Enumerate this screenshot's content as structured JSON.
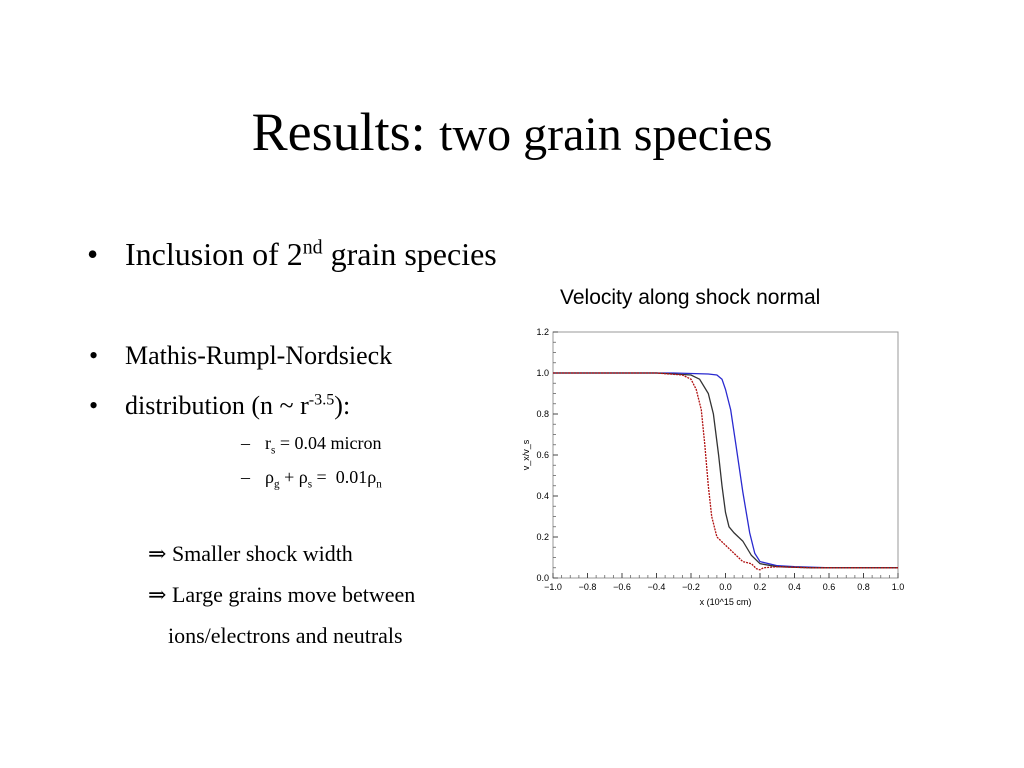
{
  "slide": {
    "title_main": "Results:",
    "title_rest": "two grain species",
    "bullet_glyph": "•",
    "dash_glyph": "–",
    "implies_glyph": "⇒",
    "bullet1": {
      "text": "Inclusion of 2",
      "sup": "nd",
      "text_after": " grain species"
    },
    "bullet2": {
      "text": "Mathis-Rumpl-Nordsieck"
    },
    "bullet3": {
      "text": "distribution (n ~ r",
      "sup": "-3.5",
      "text_after": "):"
    },
    "sub1": {
      "r": "r",
      "r_sub": "s",
      "rest": " = 0.04 micron"
    },
    "sub2": {
      "rho1": "ρ",
      "rho1_sub": "g",
      "plus": " + ",
      "rho2": "ρ",
      "rho2_sub": "s",
      "eq": " =  0.01",
      "rho3": "ρ",
      "rho3_sub": "n"
    },
    "result1": "Smaller shock width",
    "result2": "Large grains move between",
    "result3": "ions/electrons and neutrals"
  },
  "chart_data": {
    "type": "line",
    "title": "Velocity along shock normal",
    "xlabel": "x (10^15 cm)",
    "ylabel": "v_x/v_s",
    "xlim": [
      -1.0,
      1.0
    ],
    "ylim": [
      0.0,
      1.2
    ],
    "xticks": [
      "−1.0",
      "−0.8",
      "−0.6",
      "−0.4",
      "−0.2",
      "0.0",
      "0.2",
      "0.4",
      "0.6",
      "0.8",
      "1.0"
    ],
    "yticks": [
      "0.0",
      "0.2",
      "0.4",
      "0.6",
      "0.8",
      "1.0",
      "1.2"
    ],
    "grid": false,
    "colors": {
      "blue": "#2a2ad0",
      "black": "#333333",
      "red": "#b01010"
    },
    "series": [
      {
        "color": "blue",
        "x": [
          -1.0,
          -0.3,
          -0.1,
          -0.05,
          -0.02,
          0.0,
          0.03,
          0.06,
          0.1,
          0.14,
          0.17,
          0.2,
          0.3,
          0.4,
          0.6,
          1.0
        ],
        "y": [
          1.0,
          1.0,
          0.995,
          0.99,
          0.97,
          0.92,
          0.82,
          0.65,
          0.42,
          0.22,
          0.12,
          0.08,
          0.06,
          0.055,
          0.05,
          0.05
        ]
      },
      {
        "color": "black",
        "x": [
          -1.0,
          -0.4,
          -0.2,
          -0.15,
          -0.1,
          -0.07,
          -0.04,
          -0.02,
          0.0,
          0.02,
          0.05,
          0.1,
          0.15,
          0.2,
          0.3,
          0.5,
          1.0
        ],
        "y": [
          1.0,
          1.0,
          0.99,
          0.97,
          0.9,
          0.8,
          0.6,
          0.45,
          0.32,
          0.25,
          0.22,
          0.18,
          0.11,
          0.07,
          0.055,
          0.05,
          0.05
        ]
      },
      {
        "color": "red",
        "x": [
          -1.0,
          -0.4,
          -0.25,
          -0.2,
          -0.17,
          -0.14,
          -0.12,
          -0.1,
          -0.08,
          -0.05,
          0.0,
          0.05,
          0.1,
          0.15,
          0.18,
          0.2,
          0.22,
          0.3,
          0.5,
          1.0
        ],
        "y": [
          1.0,
          1.0,
          0.99,
          0.97,
          0.92,
          0.82,
          0.65,
          0.45,
          0.3,
          0.2,
          0.16,
          0.12,
          0.08,
          0.07,
          0.045,
          0.04,
          0.05,
          0.055,
          0.05,
          0.05
        ]
      }
    ]
  }
}
